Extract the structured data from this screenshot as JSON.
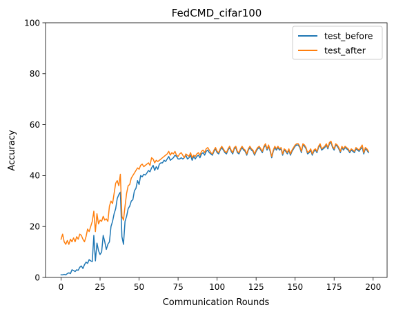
{
  "chart_data": {
    "type": "line",
    "title": "FedCMD_cifar100",
    "xlabel": "Communication Rounds",
    "ylabel": "Accuracy",
    "xlim": [
      -9.95,
      208.95
    ],
    "ylim": [
      0,
      100
    ],
    "xticks": [
      0,
      25,
      50,
      75,
      100,
      125,
      150,
      175,
      200
    ],
    "yticks": [
      0,
      20,
      40,
      60,
      80,
      100
    ],
    "xtick_labels": [
      "0",
      "25",
      "50",
      "75",
      "100",
      "125",
      "150",
      "175",
      "200"
    ],
    "ytick_labels": [
      "0",
      "20",
      "40",
      "60",
      "80",
      "100"
    ],
    "grid": false,
    "legend_position": "top-right",
    "series": [
      {
        "name": "test_before",
        "color": "#1f77b4",
        "values": [
          1.0,
          1.0,
          1.2,
          1.0,
          1.5,
          1.8,
          1.5,
          3.0,
          2.7,
          2.3,
          3.0,
          2.8,
          4.0,
          4.5,
          3.5,
          5.0,
          6.0,
          5.5,
          7.0,
          6.5,
          6.2,
          16.5,
          6.5,
          13.5,
          10.5,
          9.0,
          10.0,
          16.5,
          14.0,
          11.0,
          13.0,
          14.0,
          20.0,
          22.0,
          25.0,
          27.0,
          31.0,
          32.5,
          33.5,
          16.0,
          13.0,
          22.0,
          24.0,
          27.0,
          28.0,
          30.0,
          30.5,
          34.0,
          35.0,
          38.0,
          36.5,
          40.0,
          39.5,
          40.5,
          40.2,
          41.0,
          42.0,
          41.5,
          43.0,
          44.0,
          42.0,
          43.5,
          42.5,
          44.5,
          45.0,
          45.0,
          46.0,
          45.5,
          46.5,
          47.5,
          46.0,
          46.5,
          47.0,
          48.0,
          47.5,
          46.5,
          46.5,
          47.0,
          46.5,
          47.0,
          48.0,
          46.5,
          47.0,
          48.0,
          46.0,
          47.5,
          46.5,
          47.5,
          48.0,
          47.0,
          48.5,
          49.0,
          48.0,
          49.5,
          50.0,
          49.0,
          48.5,
          48.0,
          49.5,
          50.5,
          49.0,
          48.5,
          50.0,
          51.0,
          50.0,
          49.0,
          48.5,
          50.0,
          51.0,
          49.5,
          48.5,
          50.5,
          51.0,
          49.0,
          48.5,
          50.0,
          51.0,
          50.0,
          49.5,
          48.0,
          50.0,
          51.0,
          50.0,
          49.5,
          48.0,
          49.5,
          50.5,
          51.0,
          50.0,
          49.0,
          51.0,
          52.0,
          50.0,
          51.5,
          49.5,
          47.0,
          49.5,
          51.0,
          50.0,
          51.0,
          50.0,
          50.5,
          48.0,
          50.0,
          49.5,
          48.5,
          50.0,
          48.0,
          49.5,
          50.5,
          51.5,
          52.0,
          52.0,
          51.0,
          49.0,
          52.0,
          51.5,
          50.5,
          48.5,
          49.0,
          50.0,
          48.0,
          49.5,
          50.0,
          49.0,
          51.0,
          52.0,
          50.0,
          50.5,
          51.0,
          52.0,
          50.5,
          52.5,
          53.0,
          51.0,
          50.0,
          52.0,
          51.5,
          50.5,
          49.0,
          51.0,
          50.0,
          51.0,
          50.5,
          50.0,
          49.0,
          50.0,
          49.5,
          49.0,
          50.5,
          50.0,
          49.5,
          50.5,
          51.0,
          48.5,
          50.5,
          50.0,
          49.0
        ]
      },
      {
        "name": "test_after",
        "color": "#ff7f0e",
        "values": [
          15.0,
          17.0,
          14.0,
          13.0,
          14.5,
          13.0,
          15.0,
          14.0,
          15.5,
          14.0,
          16.0,
          15.0,
          17.0,
          16.5,
          15.0,
          14.0,
          16.0,
          19.0,
          18.0,
          20.0,
          22.0,
          26.0,
          18.0,
          25.0,
          21.0,
          22.5,
          22.0,
          24.0,
          22.5,
          23.0,
          22.0,
          28.0,
          30.0,
          29.0,
          33.0,
          37.0,
          38.0,
          36.0,
          40.5,
          24.0,
          22.5,
          28.0,
          33.0,
          36.0,
          36.5,
          39.0,
          40.0,
          41.0,
          42.0,
          43.0,
          42.5,
          44.0,
          44.5,
          43.5,
          44.0,
          44.5,
          45.0,
          44.0,
          47.0,
          46.5,
          45.0,
          46.0,
          45.5,
          46.0,
          46.5,
          47.0,
          47.5,
          48.0,
          48.5,
          49.5,
          48.0,
          49.0,
          48.5,
          49.5,
          48.0,
          47.5,
          48.5,
          49.0,
          48.0,
          47.0,
          48.5,
          48.0,
          47.5,
          49.0,
          47.0,
          48.0,
          47.5,
          48.5,
          49.0,
          48.0,
          49.5,
          50.0,
          49.0,
          50.5,
          51.0,
          50.0,
          49.0,
          48.5,
          50.0,
          51.0,
          49.5,
          49.0,
          50.5,
          51.5,
          50.5,
          49.5,
          49.0,
          50.5,
          51.5,
          50.0,
          49.0,
          51.0,
          51.5,
          49.5,
          49.0,
          50.5,
          51.5,
          50.5,
          50.0,
          48.5,
          50.5,
          51.5,
          50.5,
          50.0,
          48.5,
          50.0,
          51.0,
          51.5,
          50.5,
          49.5,
          51.5,
          52.5,
          50.5,
          52.0,
          50.0,
          47.5,
          50.0,
          51.5,
          50.5,
          51.5,
          50.5,
          51.0,
          48.5,
          50.5,
          50.0,
          49.0,
          50.5,
          48.5,
          50.0,
          51.0,
          52.0,
          52.5,
          52.5,
          51.5,
          49.5,
          52.5,
          52.0,
          51.0,
          49.0,
          49.5,
          50.5,
          48.5,
          50.0,
          50.5,
          49.5,
          51.5,
          52.5,
          50.5,
          51.0,
          51.5,
          52.5,
          51.0,
          53.0,
          53.5,
          51.5,
          50.5,
          52.5,
          52.0,
          51.0,
          49.5,
          51.5,
          50.5,
          51.5,
          51.0,
          50.5,
          49.5,
          50.5,
          50.0,
          49.5,
          51.0,
          50.5,
          50.0,
          51.0,
          52.0,
          49.0,
          51.0,
          50.5,
          49.5
        ]
      }
    ]
  }
}
